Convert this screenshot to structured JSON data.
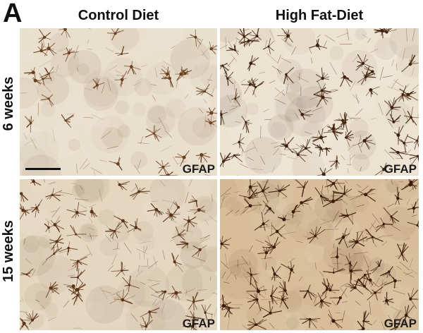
{
  "panel_letter": "A",
  "columns": [
    "Control Diet",
    "High Fat-Diet"
  ],
  "rows": [
    "6 weeks",
    "15 weeks"
  ],
  "stain": "GFAP",
  "panels": [
    {
      "id": "6w-control",
      "bg": "#e9dfcd",
      "cell": "#6b3f1e",
      "density": 0.45
    },
    {
      "id": "6w-hfd",
      "bg": "#ece2d0",
      "cell": "#3f200c",
      "density": 0.8
    },
    {
      "id": "15w-control",
      "bg": "#e4d6bf",
      "cell": "#5a3215",
      "density": 0.7
    },
    {
      "id": "15w-hfd",
      "bg": "#d7bd98",
      "cell": "#3a1b08",
      "density": 1.0
    }
  ]
}
